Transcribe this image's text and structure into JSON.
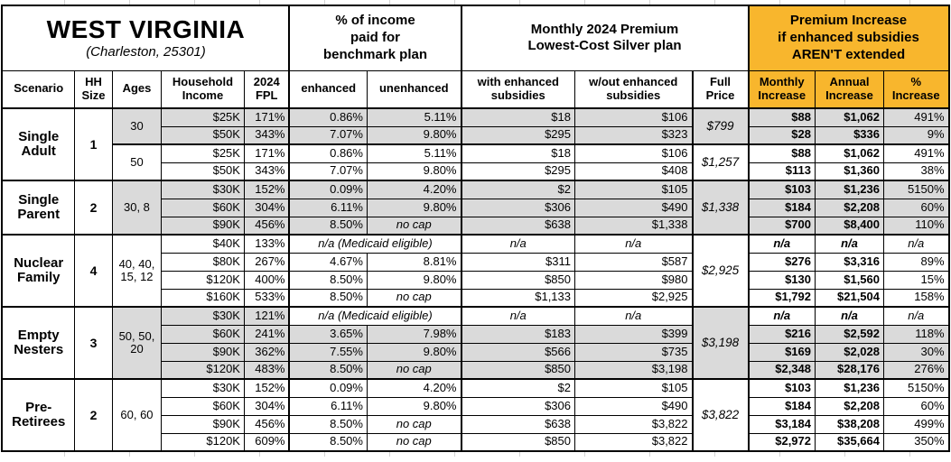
{
  "colors": {
    "accent_orange": "#F8B62D",
    "band_gray": "#DADADA",
    "grid_thin": "#8f8f8f"
  },
  "title": {
    "state": "WEST VIRGINIA",
    "location": "(Charleston, 25301)"
  },
  "group_headers": {
    "benchmark": "% of income\npaid for\nbenchmark plan",
    "premium": "Monthly 2024 Premium\nLowest-Cost Silver plan",
    "increase": "Premium Increase\nif enhanced subsidies\nAREN'T extended"
  },
  "columns": {
    "scenario": "Scenario",
    "hh_size": "HH Size",
    "ages": "Ages",
    "income": "Household Income",
    "fpl": "2024 FPL",
    "enhanced": "enhanced",
    "unenhanced": "unenhanced",
    "with_sub": "with enhanced subsidies",
    "without_sub": "w/out enhanced subsidies",
    "full_price": "Full Price",
    "monthly": "Monthly Increase",
    "annual": "Annual Increase",
    "pct": "% Increase"
  },
  "scenarios": [
    {
      "name": "Single Adult",
      "hh_size": "1",
      "subgroups": [
        {
          "ages": "30",
          "shaded": true,
          "full_price": "$799",
          "rows": [
            {
              "income": "$25K",
              "fpl": "171%",
              "enhanced": "0.86%",
              "unenhanced": "5.11%",
              "with_sub": "$18",
              "without_sub": "$106",
              "monthly": "$88",
              "annual": "$1,062",
              "pct": "491%"
            },
            {
              "income": "$50K",
              "fpl": "343%",
              "enhanced": "7.07%",
              "unenhanced": "9.80%",
              "with_sub": "$295",
              "without_sub": "$323",
              "monthly": "$28",
              "annual": "$336",
              "pct": "9%"
            }
          ]
        },
        {
          "ages": "50",
          "shaded": false,
          "full_price": "$1,257",
          "rows": [
            {
              "income": "$25K",
              "fpl": "171%",
              "enhanced": "0.86%",
              "unenhanced": "5.11%",
              "with_sub": "$18",
              "without_sub": "$106",
              "monthly": "$88",
              "annual": "$1,062",
              "pct": "491%"
            },
            {
              "income": "$50K",
              "fpl": "343%",
              "enhanced": "7.07%",
              "unenhanced": "9.80%",
              "with_sub": "$295",
              "without_sub": "$408",
              "monthly": "$113",
              "annual": "$1,360",
              "pct": "38%"
            }
          ]
        }
      ]
    },
    {
      "name": "Single Parent",
      "hh_size": "2",
      "subgroups": [
        {
          "ages": "30, 8",
          "shaded": true,
          "full_price": "$1,338",
          "rows": [
            {
              "income": "$30K",
              "fpl": "152%",
              "enhanced": "0.09%",
              "unenhanced": "4.20%",
              "with_sub": "$2",
              "without_sub": "$105",
              "monthly": "$103",
              "annual": "$1,236",
              "pct": "5150%"
            },
            {
              "income": "$60K",
              "fpl": "304%",
              "enhanced": "6.11%",
              "unenhanced": "9.80%",
              "with_sub": "$306",
              "without_sub": "$490",
              "monthly": "$184",
              "annual": "$2,208",
              "pct": "60%"
            },
            {
              "income": "$90K",
              "fpl": "456%",
              "enhanced": "8.50%",
              "unenhanced": "no cap",
              "with_sub": "$638",
              "without_sub": "$1,338",
              "monthly": "$700",
              "annual": "$8,400",
              "pct": "110%"
            }
          ]
        }
      ]
    },
    {
      "name": "Nuclear Family",
      "hh_size": "4",
      "subgroups": [
        {
          "ages": "40, 40, 15, 12",
          "shaded": false,
          "full_price": "$2,925",
          "rows": [
            {
              "income": "$40K",
              "fpl": "133%",
              "benchmark": "n/a (Medicaid eligible)",
              "with_sub": "n/a",
              "without_sub": "n/a",
              "monthly": "n/a",
              "annual": "n/a",
              "pct": "n/a"
            },
            {
              "income": "$80K",
              "fpl": "267%",
              "enhanced": "4.67%",
              "unenhanced": "8.81%",
              "with_sub": "$311",
              "without_sub": "$587",
              "monthly": "$276",
              "annual": "$3,316",
              "pct": "89%"
            },
            {
              "income": "$120K",
              "fpl": "400%",
              "enhanced": "8.50%",
              "unenhanced": "9.80%",
              "with_sub": "$850",
              "without_sub": "$980",
              "monthly": "$130",
              "annual": "$1,560",
              "pct": "15%"
            },
            {
              "income": "$160K",
              "fpl": "533%",
              "enhanced": "8.50%",
              "unenhanced": "no cap",
              "with_sub": "$1,133",
              "without_sub": "$2,925",
              "monthly": "$1,792",
              "annual": "$21,504",
              "pct": "158%"
            }
          ]
        }
      ]
    },
    {
      "name": "Empty Nesters",
      "hh_size": "3",
      "subgroups": [
        {
          "ages": "50, 50, 20",
          "shaded": true,
          "full_price": "$3,198",
          "rows": [
            {
              "income": "$30K",
              "fpl": "121%",
              "benchmark": "n/a (Medicaid eligible)",
              "with_sub": "n/a",
              "without_sub": "n/a",
              "monthly": "n/a",
              "annual": "n/a",
              "pct": "n/a"
            },
            {
              "income": "$60K",
              "fpl": "241%",
              "enhanced": "3.65%",
              "unenhanced": "7.98%",
              "with_sub": "$183",
              "without_sub": "$399",
              "monthly": "$216",
              "annual": "$2,592",
              "pct": "118%"
            },
            {
              "income": "$90K",
              "fpl": "362%",
              "enhanced": "7.55%",
              "unenhanced": "9.80%",
              "with_sub": "$566",
              "without_sub": "$735",
              "monthly": "$169",
              "annual": "$2,028",
              "pct": "30%"
            },
            {
              "income": "$120K",
              "fpl": "483%",
              "enhanced": "8.50%",
              "unenhanced": "no cap",
              "with_sub": "$850",
              "without_sub": "$3,198",
              "monthly": "$2,348",
              "annual": "$28,176",
              "pct": "276%"
            }
          ]
        }
      ]
    },
    {
      "name": "Pre-Retirees",
      "hh_size": "2",
      "subgroups": [
        {
          "ages": "60, 60",
          "shaded": false,
          "full_price": "$3,822",
          "rows": [
            {
              "income": "$30K",
              "fpl": "152%",
              "enhanced": "0.09%",
              "unenhanced": "4.20%",
              "with_sub": "$2",
              "without_sub": "$105",
              "monthly": "$103",
              "annual": "$1,236",
              "pct": "5150%"
            },
            {
              "income": "$60K",
              "fpl": "304%",
              "enhanced": "6.11%",
              "unenhanced": "9.80%",
              "with_sub": "$306",
              "without_sub": "$490",
              "monthly": "$184",
              "annual": "$2,208",
              "pct": "60%"
            },
            {
              "income": "$90K",
              "fpl": "456%",
              "enhanced": "8.50%",
              "unenhanced": "no cap",
              "with_sub": "$638",
              "without_sub": "$3,822",
              "monthly": "$3,184",
              "annual": "$38,208",
              "pct": "499%"
            },
            {
              "income": "$120K",
              "fpl": "609%",
              "enhanced": "8.50%",
              "unenhanced": "no cap",
              "with_sub": "$850",
              "without_sub": "$3,822",
              "monthly": "$2,972",
              "annual": "$35,664",
              "pct": "350%"
            }
          ]
        }
      ]
    }
  ]
}
